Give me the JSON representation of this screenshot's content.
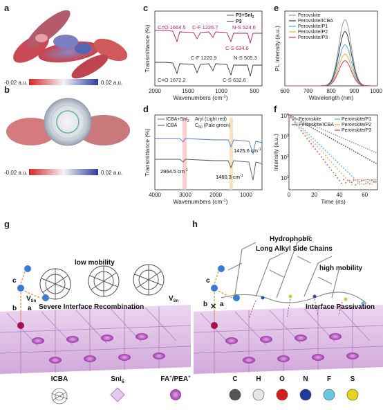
{
  "labels": {
    "a": "a",
    "b": "b",
    "c": "c",
    "d": "d",
    "e": "e",
    "f": "f",
    "g": "g",
    "h": "h"
  },
  "esp": {
    "min": "-0.02 a.u.",
    "max": "0.02 a.u."
  },
  "chart_c": {
    "ylabel": "Transmittance (%)",
    "xlabel": "Wavenumbers (cm",
    "ticks": [
      "2000",
      "1500",
      "1000",
      "500"
    ],
    "legend": [
      "P3+SnI",
      "P3"
    ],
    "top": {
      "co": "C=O 1664.5",
      "cf": "C-F 1226.7",
      "ns": "N-S 524.6",
      "cs": "C-S 634.6"
    },
    "bot": {
      "co": "C=O 1672.2",
      "cf": "C-F 1220.9",
      "ns": "N-S 505.3",
      "cs": "C-S 632.6"
    }
  },
  "chart_d": {
    "ylabel": "Transmittance (%)",
    "xlabel": "Wavenumbers (cm",
    "ticks": [
      "4000",
      "3000",
      "2000",
      "1000"
    ],
    "legend": [
      "ICBA+SnI",
      "ICBA"
    ],
    "aryl": "Aryl (Light red)",
    "c60": "C",
    "c60tail": "(Pale green)",
    "n1": "2964.5 cm",
    "n2": "1425.6 cm",
    "n3": "1460.3 cm"
  },
  "chart_e": {
    "ylabel": "PL intensity (a.u.)",
    "xlabel": "Wavelength (nm)",
    "ticks": [
      "600",
      "700",
      "800",
      "900",
      "1000"
    ],
    "legend": [
      "Perovskite",
      "Perovskite/ICBA",
      "Perovskite/P1",
      "Perovskite/P2",
      "Perovskite/P3"
    ]
  },
  "chart_f": {
    "ylabel": "Intensity (a.u.)",
    "xlabel": "Time (ns)",
    "xticks": [
      "0",
      "20",
      "40",
      "60"
    ],
    "yticks": [
      "10",
      "10",
      "10",
      "10"
    ],
    "yexp": [
      "4",
      "3",
      "2",
      "1"
    ],
    "legend": [
      "Perovskite",
      "Perovskite/ICBA",
      "Perovskite/P1",
      "Perovskite/P2",
      "Perovskite/P3"
    ]
  },
  "panel_g": {
    "low": "low mobility",
    "rec": "Severe Interface Recombination",
    "vsn": "V",
    "sub": "Sn",
    "ab": "b",
    "aa": "a",
    "ac": "c"
  },
  "panel_h": {
    "hydro1": "Hydrophobic",
    "hydro2": "Long Alkyl Side Chains",
    "high": "high mobility",
    "pass": "Interface Passivation",
    "ab": "b",
    "aa": "a",
    "ac": "c"
  },
  "legend_bottom": {
    "icba": "ICBA",
    "sni": "SnI",
    "sni_sub": "6",
    "fa": "FA",
    "pea": "PEA"
  },
  "atoms": [
    "C",
    "H",
    "O",
    "N",
    "F",
    "S"
  ],
  "chart_data": [
    {
      "type": "line",
      "title": "",
      "xlabel": "Wavenumbers (cm-1)",
      "ylabel": "Transmittance (%)",
      "xlim": [
        2000,
        400
      ],
      "series": [
        {
          "name": "P3+SnI2"
        },
        {
          "name": "P3"
        }
      ]
    },
    {
      "type": "line",
      "title": "",
      "xlabel": "Wavenumbers (cm-1)",
      "ylabel": "Transmittance (%)",
      "xlim": [
        4000,
        500
      ],
      "series": [
        {
          "name": "ICBA+SnI2"
        },
        {
          "name": "ICBA"
        }
      ]
    },
    {
      "type": "line",
      "title": "",
      "xlabel": "Wavelength (nm)",
      "ylabel": "PL intensity (a.u.)",
      "xlim": [
        600,
        1000
      ],
      "peak_x": 860,
      "series": [
        {
          "name": "Perovskite",
          "peak": 1.0,
          "color": "#9a9a9a"
        },
        {
          "name": "Perovskite/ICBA",
          "peak": 0.82,
          "color": "#333333"
        },
        {
          "name": "Perovskite/P1",
          "peak": 0.62,
          "color": "#3fb6e8"
        },
        {
          "name": "Perovskite/P2",
          "peak": 0.48,
          "color": "#f0b429"
        },
        {
          "name": "Perovskite/P3",
          "peak": 0.38,
          "color": "#d6336c"
        }
      ]
    },
    {
      "type": "scatter",
      "title": "",
      "xlabel": "Time (ns)",
      "ylabel": "Intensity (a.u.)",
      "xlim": [
        0,
        70
      ],
      "ylog": true,
      "ylim": [
        5,
        10000
      ],
      "series": [
        {
          "name": "Perovskite",
          "tau": 18,
          "color": "#9a9a9a"
        },
        {
          "name": "Perovskite/ICBA",
          "tau": 14,
          "color": "#555555"
        },
        {
          "name": "Perovskite/P1",
          "tau": 8,
          "color": "#3fb6e8"
        },
        {
          "name": "Perovskite/P2",
          "tau": 7,
          "color": "#f0b429"
        },
        {
          "name": "Perovskite/P3",
          "tau": 6,
          "color": "#d6336c"
        }
      ]
    }
  ]
}
